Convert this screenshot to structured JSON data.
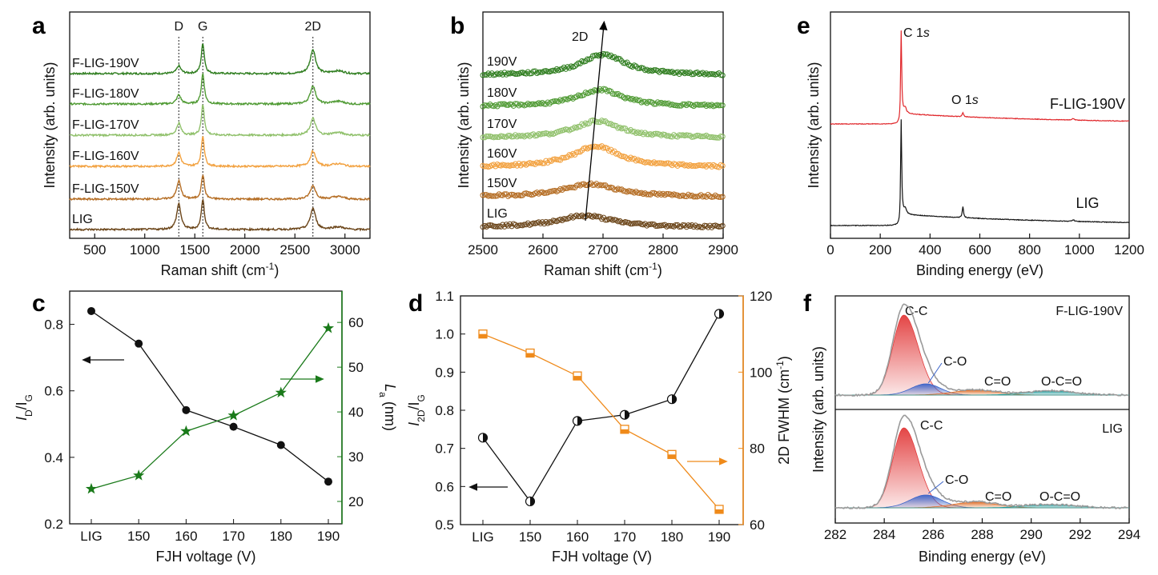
{
  "chart_data": [
    {
      "panel": "a",
      "type": "line",
      "xlabel": "Raman shift (cm",
      "xlabel_sup": "-1",
      "xlabel_end": ")",
      "ylabel": "Intensity (arb. units)",
      "xlim": [
        250,
        3250
      ],
      "xticks": [
        500,
        1000,
        1500,
        2000,
        2500,
        3000
      ],
      "peaks": [
        {
          "name": "D",
          "x": 1340
        },
        {
          "name": "G",
          "x": 1580
        },
        {
          "name": "2D",
          "x": 2680
        }
      ],
      "series": [
        {
          "name": "F-LIG-190V",
          "color": "#2e7d1e",
          "baseline": 0.0,
          "D": 0.25,
          "G": 1.0,
          "D2": 0.8
        },
        {
          "name": "F-LIG-180V",
          "color": "#4f9a33",
          "baseline": 0.0,
          "D": 0.3,
          "G": 1.0,
          "D2": 0.6
        },
        {
          "name": "F-LIG-170V",
          "color": "#8fc06a",
          "baseline": 0.0,
          "D": 0.4,
          "G": 1.0,
          "D2": 0.55
        },
        {
          "name": "F-LIG-160V",
          "color": "#f2a03d",
          "baseline": 0.0,
          "D": 0.45,
          "G": 1.0,
          "D2": 0.5
        },
        {
          "name": "F-LIG-150V",
          "color": "#b46c22",
          "baseline": 0.0,
          "D": 0.6,
          "G": 0.8,
          "D2": 0.45
        },
        {
          "name": "LIG",
          "color": "#6a4418",
          "baseline": 0.0,
          "D": 0.85,
          "G": 1.0,
          "D2": 0.7
        }
      ]
    },
    {
      "panel": "b",
      "type": "scatter",
      "xlabel": "Raman shift (cm",
      "xlabel_sup": "-1",
      "xlabel_end": ")",
      "ylabel": "Intensity (arb. units)",
      "xlim": [
        2500,
        2900
      ],
      "xticks": [
        2500,
        2600,
        2700,
        2800,
        2900
      ],
      "annotation": "2D",
      "series": [
        {
          "name": "190V",
          "color": "#2e7d1e",
          "peak_x": 2700,
          "height": 1.0,
          "width": 45
        },
        {
          "name": "180V",
          "color": "#4f9a33",
          "peak_x": 2695,
          "height": 0.8,
          "width": 45
        },
        {
          "name": "170V",
          "color": "#8fc06a",
          "peak_x": 2690,
          "height": 0.8,
          "width": 45
        },
        {
          "name": "160V",
          "color": "#f2a03d",
          "peak_x": 2688,
          "height": 1.0,
          "width": 48
        },
        {
          "name": "150V",
          "color": "#b46c22",
          "peak_x": 2680,
          "height": 0.6,
          "width": 55
        },
        {
          "name": "LIG",
          "color": "#6a4418",
          "peak_x": 2670,
          "height": 0.55,
          "width": 55
        }
      ]
    },
    {
      "panel": "c",
      "type": "line",
      "categories": [
        "LIG",
        "150",
        "160",
        "170",
        "180",
        "190"
      ],
      "xlabel": "FJH voltage (V)",
      "left": {
        "label_main": "I",
        "label_sub1": "D",
        "label_mid": "/I",
        "label_sub2": "G",
        "ylim": [
          0.2,
          0.9
        ],
        "yticks": [
          "0.2",
          "0.4",
          "0.6",
          "0.8"
        ],
        "values": [
          0.84,
          0.742,
          0.542,
          0.492,
          0.437,
          0.327
        ],
        "color": "#000000"
      },
      "right": {
        "label_main": "L",
        "label_sub": "a",
        "label_end": " (nm)",
        "ylim": [
          15,
          67
        ],
        "yticks": [
          "20",
          "30",
          "40",
          "50",
          "60"
        ],
        "values": [
          22.8,
          25.8,
          35.7,
          39.2,
          44.3,
          58.7
        ],
        "color": "#1a7a1a"
      }
    },
    {
      "panel": "d",
      "type": "line",
      "categories": [
        "LIG",
        "150",
        "160",
        "170",
        "180",
        "190"
      ],
      "xlabel": "FJH voltage (V)",
      "left": {
        "label_main": "I",
        "label_sub1": "2D",
        "label_mid": "/I",
        "label_sub2": "G",
        "ylim": [
          0.5,
          1.1
        ],
        "yticks": [
          "0.5",
          "0.6",
          "0.7",
          "0.8",
          "0.9",
          "1.0",
          "1.1"
        ],
        "values": [
          0.728,
          0.561,
          0.772,
          0.788,
          0.829,
          1.053
        ],
        "color": "#000000"
      },
      "right": {
        "label": "2D FWHM (cm",
        "label_sup": "-1",
        "label_end": ")",
        "ylim": [
          60,
          120
        ],
        "yticks": [
          "60",
          "80",
          "100",
          "120"
        ],
        "values": [
          110,
          105,
          99,
          85,
          78.4,
          64
        ],
        "color": "#ef8a1a"
      }
    },
    {
      "panel": "e",
      "type": "line",
      "xlabel": "Binding energy (eV)",
      "ylabel": "Intensity (arb. units)",
      "xlim": [
        0,
        1200
      ],
      "xticks": [
        0,
        200,
        400,
        600,
        800,
        1000,
        1200
      ],
      "annotations": [
        "C 1s",
        "O 1s"
      ],
      "series": [
        {
          "name": "F-LIG-190V",
          "color": "#e0262a"
        },
        {
          "name": "LIG",
          "color": "#111111"
        }
      ]
    },
    {
      "panel": "f",
      "type": "area",
      "xlabel": "Binding energy (eV)",
      "ylabel": "Intensity (arb. units)",
      "xlim": [
        282,
        294
      ],
      "xticks": [
        282,
        284,
        286,
        288,
        290,
        292,
        294
      ],
      "subplots": [
        {
          "name": "F-LIG-190V",
          "components": [
            {
              "name": "C-C",
              "center": 284.8,
              "height": 1.0,
              "width": 0.45,
              "color": "#e23b3b"
            },
            {
              "name": "C-O",
              "center": 285.7,
              "height": 0.14,
              "width": 0.6,
              "color": "#3a63c9"
            },
            {
              "name": "C=O",
              "center": 287.7,
              "height": 0.06,
              "width": 0.9,
              "color": "#e0702a"
            },
            {
              "name": "O-C=O",
              "center": 290.8,
              "height": 0.05,
              "width": 1.0,
              "color": "#1f9c9c"
            }
          ]
        },
        {
          "name": "LIG",
          "components": [
            {
              "name": "C-C",
              "center": 284.8,
              "height": 1.0,
              "width": 0.45,
              "color": "#e23b3b"
            },
            {
              "name": "C-O",
              "center": 285.7,
              "height": 0.16,
              "width": 0.65,
              "color": "#3a63c9"
            },
            {
              "name": "C=O",
              "center": 287.7,
              "height": 0.07,
              "width": 0.9,
              "color": "#e0702a"
            },
            {
              "name": "O-C=O",
              "center": 290.8,
              "height": 0.04,
              "width": 1.0,
              "color": "#1f9c9c"
            }
          ]
        }
      ]
    }
  ]
}
